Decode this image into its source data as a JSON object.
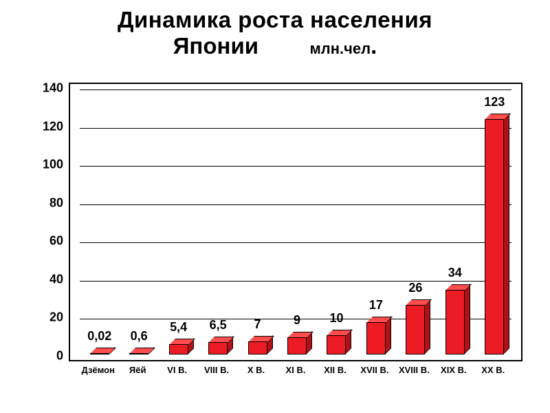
{
  "title": {
    "line1": "Динамика роста населения",
    "line2": "Японии",
    "unit": "млн.чел",
    "dot": "."
  },
  "chart": {
    "type": "bar",
    "ylim": [
      0,
      140
    ],
    "ytick_step": 20,
    "yticks": [
      0,
      20,
      40,
      60,
      80,
      100,
      120,
      140
    ],
    "grid_color": "#000000",
    "border_color": "#000000",
    "background_color": "#ffffff",
    "bar_color_front": "#ed1c24",
    "bar_color_top": "#ff4d4d",
    "bar_color_side": "#b01016",
    "value_fontsize": 18,
    "xlabel_fontsize": 13,
    "categories": [
      "Дзёмон",
      "Яёй",
      "VI В.",
      "VIII В.",
      "X В.",
      "XI В.",
      "XII В.",
      "XVII В.",
      "XVIII В.",
      "XIX В.",
      "XX В."
    ],
    "values": [
      0.02,
      0.6,
      5.4,
      6.5,
      7,
      9,
      10,
      17,
      26,
      34,
      123
    ],
    "value_labels": [
      "0,02",
      "0,6",
      "5,4",
      "6,5",
      "7",
      "9",
      "10",
      "17",
      "26",
      "34",
      "123"
    ]
  }
}
